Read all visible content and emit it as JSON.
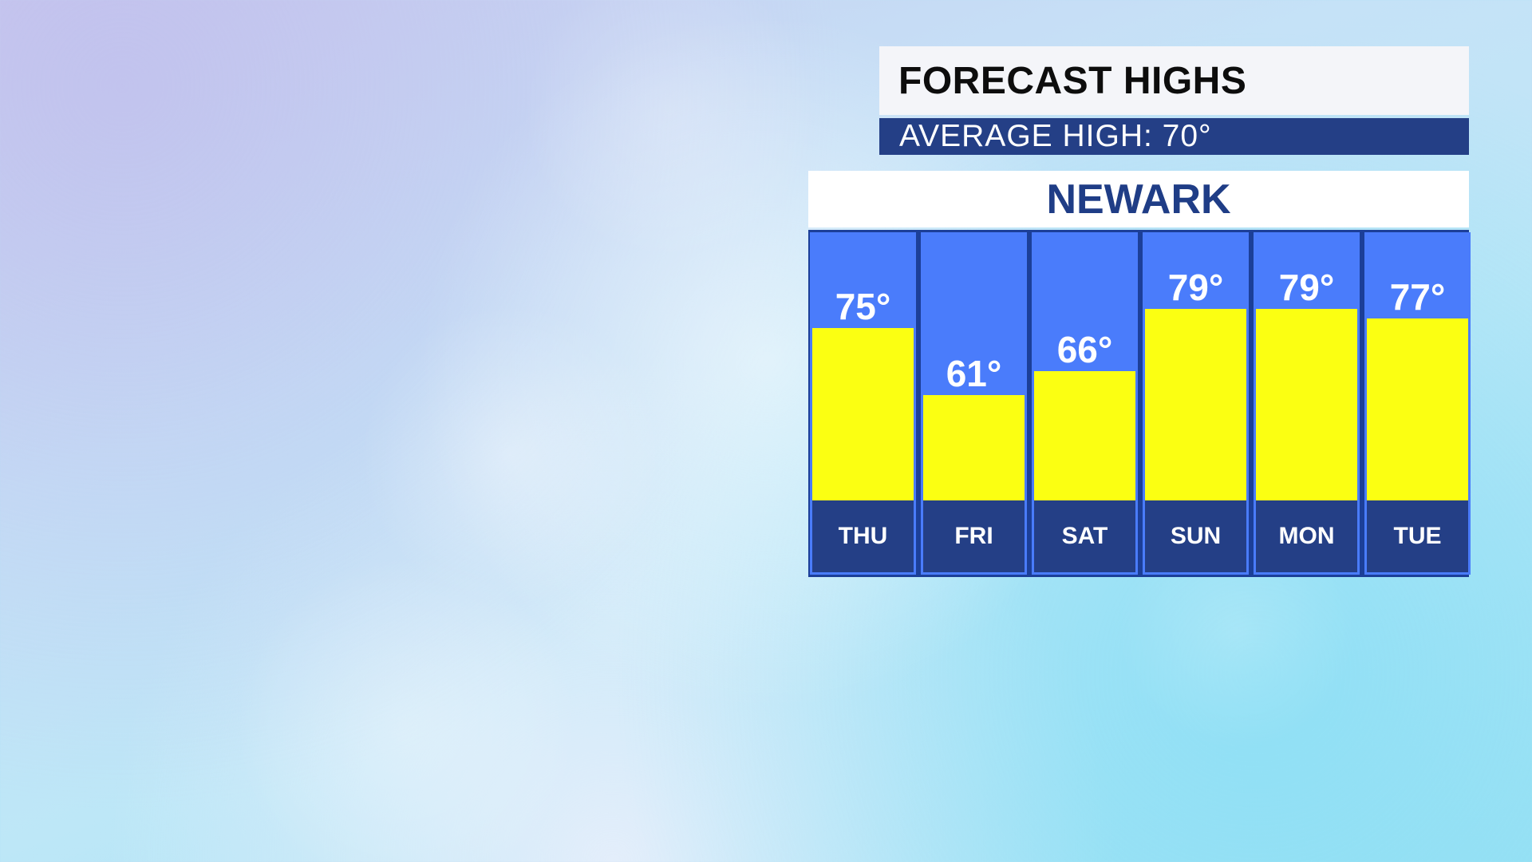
{
  "header": {
    "title": "FORECAST HIGHS",
    "average": "AVERAGE HIGH:  70°"
  },
  "location": {
    "city": "NEWARK"
  },
  "colors": {
    "bar_fill": "#fbff12",
    "column_background": "#4a7cfb",
    "day_box": "#243f86",
    "frame": "#1c3f98",
    "city_text": "#1f3d86"
  },
  "chart_data": {
    "type": "bar",
    "title": "",
    "xlabel": "",
    "ylabel": "",
    "categories": [
      "THU",
      "FRI",
      "SAT",
      "SUN",
      "MON",
      "TUE"
    ],
    "values": [
      75,
      61,
      66,
      79,
      79,
      77
    ],
    "value_labels": [
      "75°",
      "61°",
      "66°",
      "79°",
      "79°",
      "77°"
    ],
    "grid": false,
    "legend": "none"
  }
}
